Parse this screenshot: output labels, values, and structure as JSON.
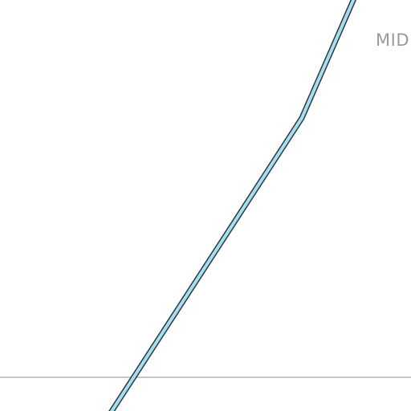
{
  "map": {
    "labels": {
      "place": "MID"
    },
    "colors": {
      "route_fill": "#a6def0",
      "route_casing": "#2b3a3f",
      "boundary": "#c8c8c8",
      "label": "#9a9a9a"
    }
  }
}
